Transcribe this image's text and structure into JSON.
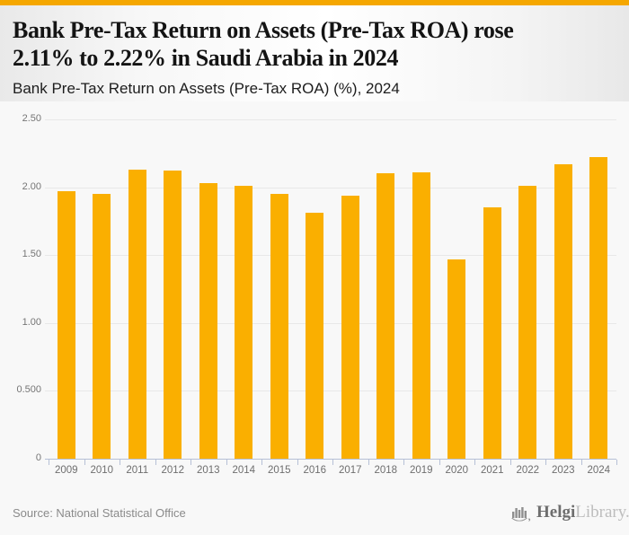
{
  "header": {
    "title_line1": "Bank Pre-Tax Return on Assets (Pre-Tax ROA) rose",
    "title_line2": "2.11% to 2.22% in Saudi Arabia in 2024",
    "subtitle": "Bank Pre-Tax Return on Assets (Pre-Tax ROA) (%), 2024"
  },
  "chart_data": {
    "type": "bar",
    "title": "Bank Pre-Tax Return on Assets (Pre-Tax ROA) rose 2.11% to 2.22% in Saudi Arabia in 2024",
    "subtitle": "Bank Pre-Tax Return on Assets (Pre-Tax ROA) (%), 2024",
    "categories": [
      "2009",
      "2010",
      "2011",
      "2012",
      "2013",
      "2014",
      "2015",
      "2016",
      "2017",
      "2018",
      "2019",
      "2020",
      "2021",
      "2022",
      "2023",
      "2024"
    ],
    "values": [
      1.97,
      1.95,
      2.13,
      2.12,
      2.03,
      2.01,
      1.95,
      1.81,
      1.94,
      2.1,
      2.11,
      1.47,
      1.85,
      2.01,
      2.17,
      2.22
    ],
    "xlabel": "",
    "ylabel": "",
    "ylim": [
      0,
      2.5
    ],
    "ytick_labels": [
      "2.50",
      "2.00",
      "1.50",
      "1.00",
      "0.500",
      "0"
    ],
    "ytick_values": [
      2.5,
      2.0,
      1.5,
      1.0,
      0.5,
      0
    ],
    "grid": true,
    "legend": false,
    "bar_color": "#FAAF00",
    "accent_color": "#F5A700",
    "grid_color": "#e8e8e8",
    "axis_color": "#b6c0d6",
    "tick_label_color": "#757575"
  },
  "footer": {
    "source": "Source: National Statistical Office",
    "logo_bold": "Helgi",
    "logo_light": "Library."
  }
}
